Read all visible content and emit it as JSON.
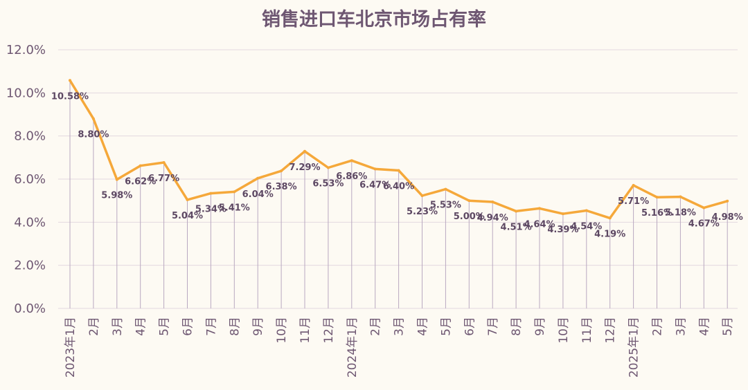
{
  "chart_data": {
    "type": "line",
    "title": "销售进口车北京市场占有率",
    "xlabel": "",
    "ylabel": "",
    "ylim": [
      0,
      12
    ],
    "yticks": [
      "0.0%",
      "2.0%",
      "4.0%",
      "6.0%",
      "8.0%",
      "10.0%",
      "12.0%"
    ],
    "grid": true,
    "categories": [
      "2023年1月",
      "2月",
      "3月",
      "4月",
      "5月",
      "6月",
      "7月",
      "8月",
      "9月",
      "10月",
      "11月",
      "12月",
      "2024年1月",
      "2月",
      "3月",
      "4月",
      "5月",
      "6月",
      "7月",
      "8月",
      "9月",
      "10月",
      "11月",
      "12月",
      "2025年1月",
      "2月",
      "3月",
      "4月",
      "5月"
    ],
    "values": [
      10.58,
      8.8,
      5.98,
      6.62,
      6.77,
      5.04,
      5.34,
      5.41,
      6.04,
      6.38,
      7.29,
      6.53,
      6.86,
      6.47,
      6.4,
      5.23,
      5.53,
      5.0,
      4.94,
      4.51,
      4.64,
      4.39,
      4.54,
      4.19,
      5.71,
      5.16,
      5.18,
      4.67,
      4.98
    ],
    "data_labels": [
      "10.58%",
      "8.80%",
      "5.98%",
      "6.62%",
      "6.77%",
      "5.04%",
      "5.34%",
      "5.41%",
      "6.04%",
      "6.38%",
      "7.29%",
      "6.53%",
      "6.86%",
      "6.47%",
      "6.40%",
      "5.23%",
      "5.53%",
      "5.00%",
      "4.94%",
      "4.51%",
      "4.64%",
      "4.39%",
      "4.54%",
      "4.19%",
      "5.71%",
      "5.16%",
      "5.18%",
      "4.67%",
      "4.98%"
    ],
    "colors": {
      "line": "#f5a83a",
      "drop": "#b9a8c0",
      "grid": "#e2d8df",
      "text": "#6e5772"
    }
  }
}
